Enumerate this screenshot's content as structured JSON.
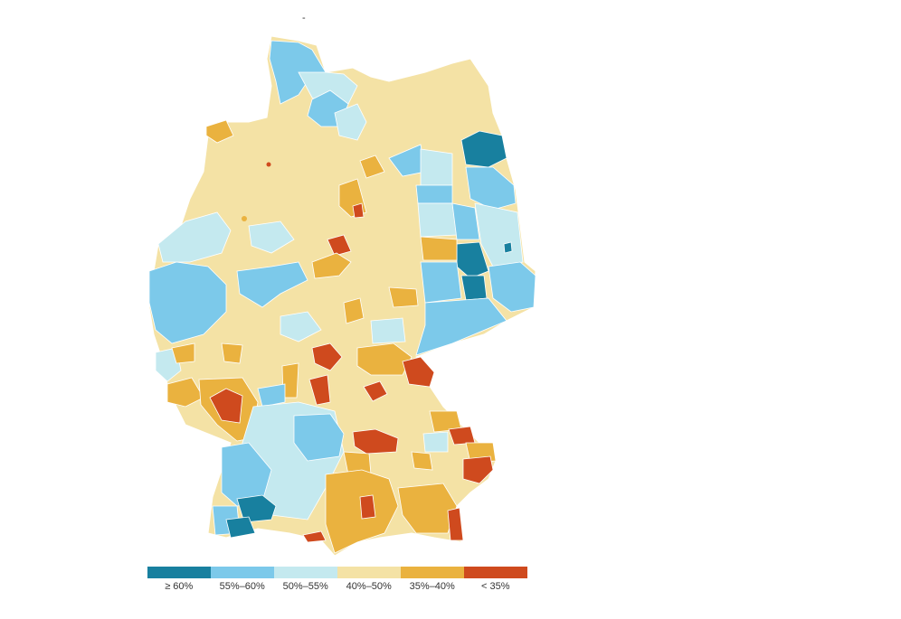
{
  "colors": {
    "ge60": "#18809f",
    "55_60": "#7cc9ea",
    "50_55": "#c4e9ef",
    "40_50": "#f4e2a5",
    "35_40": "#eab23f",
    "lt35": "#cf4a1e",
    "border": "#ffffff"
  },
  "map": {
    "region": "Germany",
    "classes": [
      "ge60",
      "55_60",
      "50_55",
      "40_50",
      "35_40",
      "lt35"
    ]
  },
  "legend": {
    "items": [
      {
        "label": "≥ 60%",
        "color": "#18809f"
      },
      {
        "label": "55%–60%",
        "color": "#7cc9ea"
      },
      {
        "label": "50%–55%",
        "color": "#c4e9ef"
      },
      {
        "label": "40%–50%",
        "color": "#f4e2a5"
      },
      {
        "label": "35%–40%",
        "color": "#eab23f"
      },
      {
        "label": "< 35%",
        "color": "#cf4a1e"
      }
    ]
  },
  "header": {
    "mark": "-"
  }
}
